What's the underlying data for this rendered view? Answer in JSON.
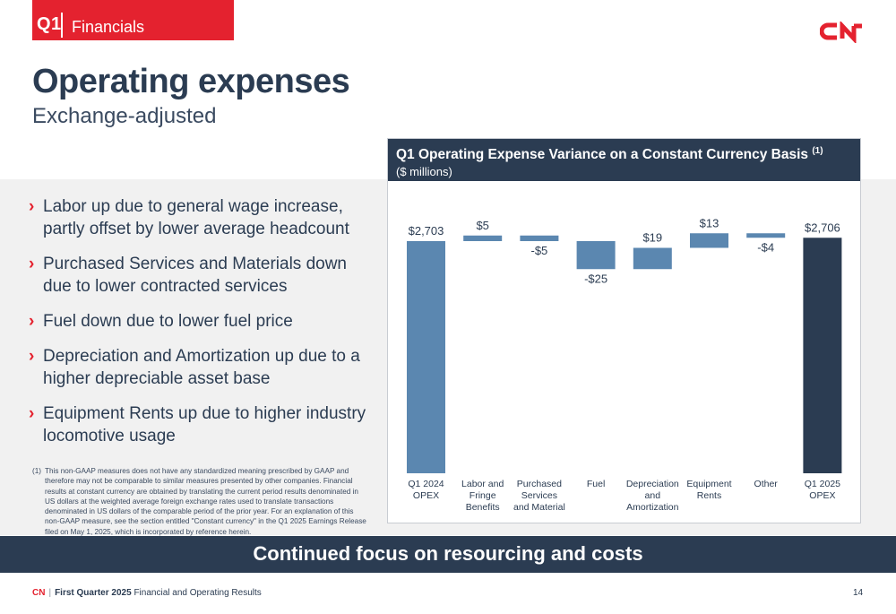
{
  "header": {
    "quarter": "Q1",
    "section": "Financials",
    "logo_text": "CN"
  },
  "title": "Operating expenses",
  "subtitle": "Exchange-adjusted",
  "bullets": [
    "Labor up due to general wage increase, partly offset by lower average headcount",
    "Purchased Services and Materials down due to lower contracted services",
    "Fuel down due to lower fuel price",
    "Depreciation and Amortization up due to a higher depreciable asset base",
    "Equipment Rents up due to higher industry locomotive usage"
  ],
  "footnote": {
    "number": "(1)",
    "text": "This non-GAAP measures does not have any standardized meaning prescribed by GAAP and therefore may not be comparable to similar measures presented by other companies. Financial results at constant currency are obtained by translating the current period results denominated in US dollars at the weighted average foreign exchange rates used to translate transactions denominated in US dollars of the comparable period of the prior year. For an explanation of this non-GAAP measure, see the section entitled \"Constant currency\" in the Q1 2025 Earnings Release filed on May 1, 2025, which is incorporated by reference herein."
  },
  "chart_data": {
    "type": "waterfall",
    "title": "Q1 Operating Expense Variance on a Constant Currency Basis",
    "title_superscript": "(1)",
    "unit": "($ millions)",
    "categories": [
      "Q1 2024\nOPEX",
      "Labor and\nFringe\nBenefits",
      "Purchased\nServices\nand Material",
      "Fuel",
      "Depreciation\nand\nAmortization",
      "Equipment\nRents",
      "Other",
      "Q1 2025\nOPEX"
    ],
    "values": [
      2703,
      5,
      -5,
      -25,
      19,
      13,
      -4,
      2706
    ],
    "labels": [
      "$2,703",
      "$5",
      "-$5",
      "-$25",
      "$19",
      "$13",
      "-$4",
      "$2,706"
    ],
    "bar_types": [
      "total",
      "delta",
      "delta",
      "delta",
      "delta",
      "delta",
      "delta",
      "total"
    ],
    "colors": {
      "start_total": "#5b87b0",
      "delta": "#5b87b0",
      "end_total": "#2b3c52"
    },
    "grid": false,
    "legend": "none"
  },
  "banner": "Continued focus on resourcing and costs",
  "footer": {
    "brand": "CN",
    "separator": "|",
    "quarter_label": "First Quarter 2025",
    "doc_title": "Financial and Operating Results",
    "page": "14"
  }
}
